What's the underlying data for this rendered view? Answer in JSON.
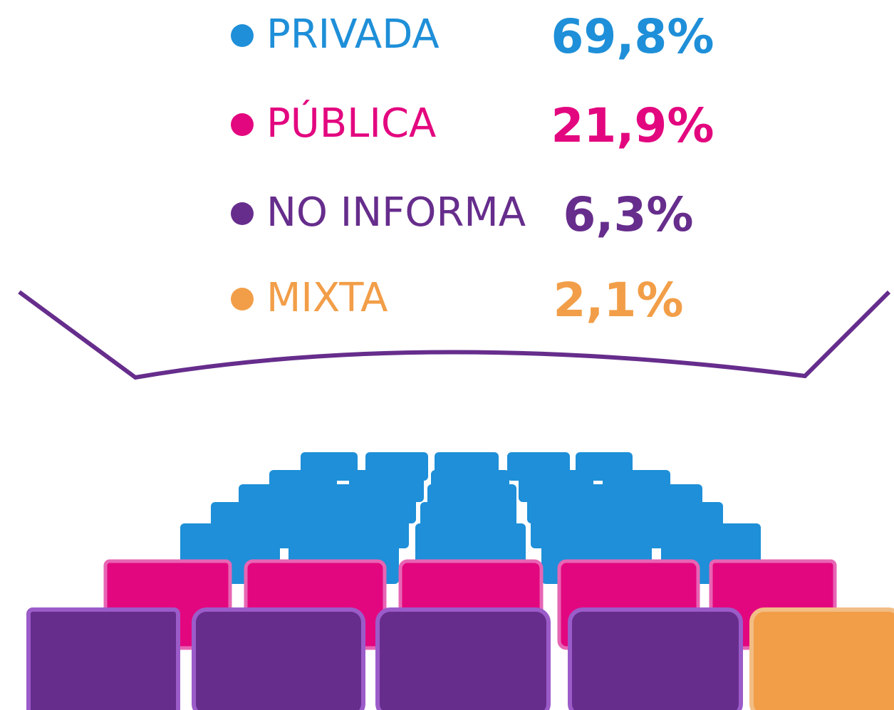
{
  "items": [
    {
      "label": "PRIVADA",
      "value": "69,8%",
      "color": "#1e8fd8"
    },
    {
      "label": "PÚBLICA",
      "value": "21,9%",
      "color": "#e3077f"
    },
    {
      "label": "NO INFORMA",
      "value": "6,3%",
      "color": "#662d8c"
    },
    {
      "label": "MIXTA",
      "value": "2,1%",
      "color": "#f29e48"
    }
  ]
}
